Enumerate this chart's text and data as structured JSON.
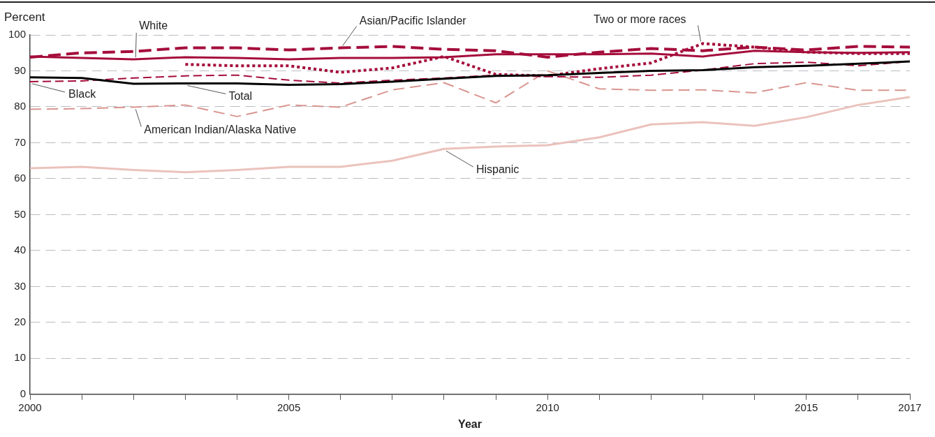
{
  "chart_data": {
    "type": "line",
    "xlabel": "Year",
    "ylabel": "Percent",
    "x": [
      2000,
      2001,
      2002,
      2003,
      2004,
      2005,
      2006,
      2007,
      2008,
      2009,
      2010,
      2011,
      2012,
      2013,
      2014,
      2015,
      2016,
      2017
    ],
    "xlim": [
      2000,
      2017
    ],
    "xticks": [
      2000,
      {
        "value": 2001,
        "label": null
      },
      {
        "value": 2002,
        "label": null
      },
      {
        "value": 2003,
        "label": null
      },
      {
        "value": 2004,
        "label": null
      },
      2005,
      {
        "value": 2006,
        "label": null
      },
      {
        "value": 2007,
        "label": null
      },
      {
        "value": 2008,
        "label": null
      },
      {
        "value": 2009,
        "label": null
      },
      2010,
      {
        "value": 2011,
        "label": null
      },
      {
        "value": 2012,
        "label": null
      },
      {
        "value": 2013,
        "label": null
      },
      {
        "value": 2014,
        "label": null
      },
      2015,
      {
        "value": 2016,
        "label": null
      },
      2017
    ],
    "ylim": [
      0,
      100
    ],
    "yticks": [
      0,
      10,
      20,
      30,
      40,
      50,
      60,
      70,
      80,
      90,
      100
    ],
    "grid": "y",
    "legend": false,
    "marker": "none",
    "series": [
      {
        "name": "Total",
        "color": "#000000",
        "line_style": "solid",
        "values": [
          88.2,
          88,
          86.4,
          86.5,
          86.5,
          86.1,
          86.3,
          87,
          87.8,
          88.6,
          88.8,
          89.4,
          90,
          90.2,
          91,
          91.4,
          92,
          92.6
        ]
      },
      {
        "name": "White",
        "color": "#a50d3b",
        "line_style": "solid",
        "values": [
          94,
          93.6,
          93.2,
          93.8,
          93.6,
          93.2,
          93.6,
          93.6,
          93.8,
          94.6,
          94.6,
          94.6,
          94.8,
          94,
          95.6,
          95.2,
          95,
          95.2
        ]
      },
      {
        "name": "Black",
        "color": "#a50d3b",
        "line_style": "dashed",
        "values": [
          87,
          87.2,
          88,
          88.6,
          88.8,
          87.4,
          86.6,
          87.4,
          88,
          88.8,
          88.4,
          88.2,
          88.8,
          90.2,
          92,
          92.4,
          91.4,
          92.6
        ]
      },
      {
        "name": "Hispanic",
        "color": "#ebc2bc",
        "line_style": "solid",
        "values": [
          62.9,
          63.3,
          62.4,
          61.8,
          62.4,
          63.3,
          63.3,
          65,
          68.3,
          68.9,
          69.3,
          71.5,
          75.1,
          75.7,
          74.7,
          77.1,
          80.5,
          82.7
        ]
      },
      {
        "name": "Asian/Pacific Islander",
        "color": "#a50d3b",
        "line_style": "dashed",
        "values": [
          93.8,
          95,
          95.4,
          96.4,
          96.4,
          95.8,
          96.4,
          96.8,
          96,
          95.6,
          93.8,
          95.2,
          96.2,
          95.6,
          96.6,
          95.8,
          96.8,
          96.6
        ]
      },
      {
        "name": "American Indian/Alaska Native",
        "color": "#d9958f",
        "line_style": "dashed",
        "values": [
          79.3,
          79.5,
          79.9,
          80.5,
          77.3,
          80.5,
          79.9,
          84.7,
          86.7,
          81.1,
          90,
          85,
          84.6,
          84.7,
          83.9,
          86.7,
          84.6,
          84.6
        ]
      },
      {
        "name": "Two or more races",
        "color": "#a50d3b",
        "line_style": "dotted",
        "values": [
          null,
          null,
          null,
          91.8,
          91.4,
          91.4,
          89.6,
          90.8,
          94,
          89,
          88.6,
          90.6,
          92.2,
          97.6,
          96.6,
          95.2,
          94.8,
          94.8
        ]
      }
    ]
  }
}
